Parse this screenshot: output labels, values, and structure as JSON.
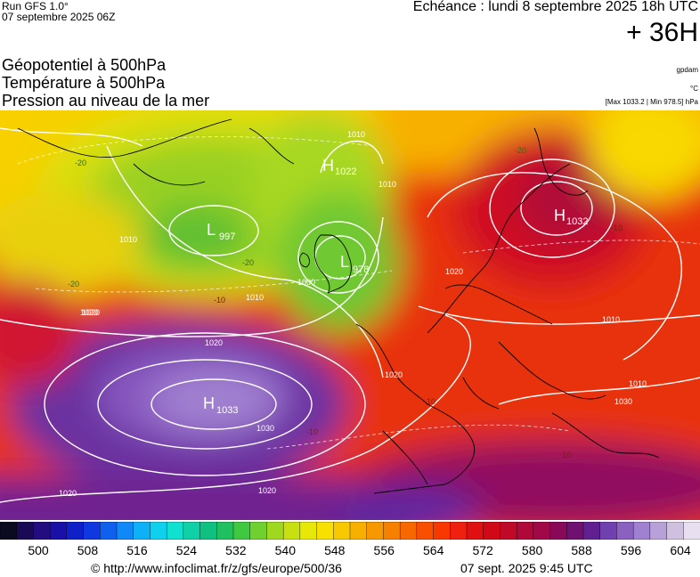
{
  "header": {
    "run": "Run GFS 1.0°",
    "run_date": "07 septembre 2025 06Z",
    "echeance": "Echéance : lundi 8 septembre 2025 18h UTC",
    "lead": "+ 36H"
  },
  "params": {
    "line1": "Géopotentiel à 500hPa",
    "line2": "Température à 500hPa",
    "line3": "Pression au niveau de la mer",
    "unit_geo": "gpdam",
    "unit_temp": "°C",
    "max_min": "[Max 1033.2 | Min 978.5] hPa"
  },
  "map": {
    "pressure_centers": [
      {
        "type": "H",
        "value": "1033"
      },
      {
        "type": "L",
        "value": "997"
      },
      {
        "type": "L",
        "value": "978"
      },
      {
        "type": "H",
        "value": "1032"
      },
      {
        "type": "H",
        "value": "1022"
      }
    ],
    "isobar_labels": [
      "1010",
      "1020",
      "1030",
      "1010",
      "1020",
      "1000",
      "1020",
      "1010",
      "1020",
      "1010",
      "1030",
      "1020",
      "1010",
      "1010",
      "1020",
      "1020"
    ],
    "isotherm_labels": [
      "-20",
      "-20",
      "-20",
      "-20",
      "-10",
      "-10",
      "-10",
      "-10",
      "-10"
    ]
  },
  "scale": {
    "colors": [
      "#0a0a20",
      "#1a0a55",
      "#220c80",
      "#1a10a8",
      "#1020c8",
      "#1038e0",
      "#1060f0",
      "#1088f8",
      "#10b0f8",
      "#10d0f0",
      "#10e0d0",
      "#10d0a8",
      "#10c080",
      "#20c060",
      "#40c840",
      "#70d030",
      "#a0d820",
      "#c8e010",
      "#e8e808",
      "#f8e000",
      "#f8c800",
      "#f8b000",
      "#f89800",
      "#f88000",
      "#f86800",
      "#f85000",
      "#f83800",
      "#f02010",
      "#e01010",
      "#d00818",
      "#c00828",
      "#b00838",
      "#a00848",
      "#8a0858",
      "#701070",
      "#602090",
      "#7040b0",
      "#8a60c0",
      "#a080d0",
      "#b8a0d8",
      "#d0c0e0",
      "#e8e0f0"
    ],
    "ticks": [
      "500",
      "508",
      "516",
      "524",
      "532",
      "540",
      "548",
      "556",
      "564",
      "572",
      "580",
      "588",
      "596",
      "604"
    ]
  },
  "footer": {
    "url": "© http://www.infoclimat.fr/z/gfs/europe/500/36",
    "stamp": "07 sept. 2025  9:45 UTC"
  }
}
